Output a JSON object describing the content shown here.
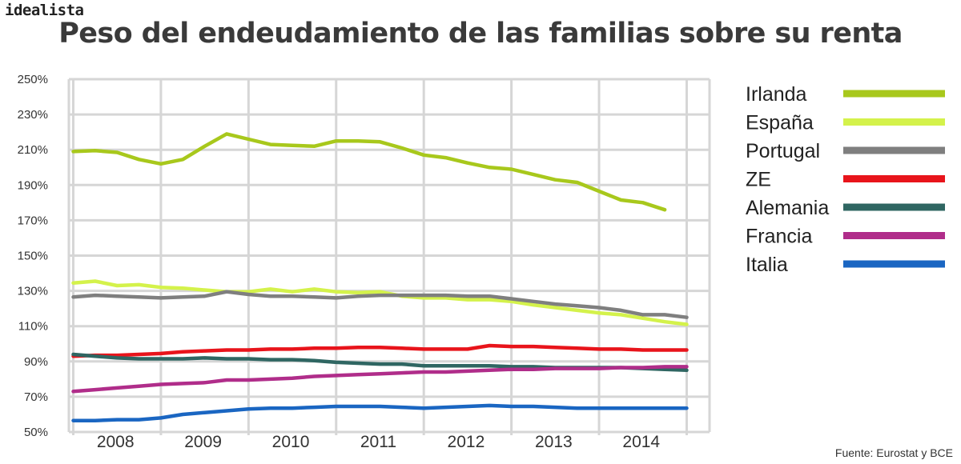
{
  "brand": "idealista",
  "source": "Fuente: Eurostat y BCE",
  "chart_data": {
    "type": "line",
    "title": "Peso del endeudamiento de las familias sobre su renta",
    "xlabel": "",
    "ylabel": "",
    "ylim": [
      50,
      250
    ],
    "xlim": [
      2007.95,
      2014.95
    ],
    "y_ticks": [
      50,
      70,
      90,
      110,
      130,
      150,
      170,
      190,
      210,
      230,
      250
    ],
    "y_tick_suffix": "%",
    "x_tick_labels": [
      "2008",
      "2009",
      "2010",
      "2011",
      "2012",
      "2013",
      "2014"
    ],
    "grid": true,
    "legend_position": "right",
    "series": [
      {
        "name": "Irlanda",
        "color": "#a8c81c",
        "x": [
          2008.0,
          2008.25,
          2008.5,
          2008.75,
          2009.0,
          2009.25,
          2009.5,
          2009.75,
          2010.0,
          2010.25,
          2010.5,
          2010.75,
          2011.0,
          2011.25,
          2011.5,
          2011.75,
          2012.0,
          2012.25,
          2012.5,
          2012.75,
          2013.0,
          2013.25,
          2013.5,
          2013.75,
          2014.0,
          2014.25,
          2014.5,
          2014.75
        ],
        "y": [
          209,
          209.5,
          208.5,
          204.5,
          202,
          204.5,
          212,
          219,
          216,
          213,
          212.5,
          212,
          215,
          215,
          214.5,
          211,
          207,
          205.5,
          202.5,
          200,
          199,
          196,
          193,
          191.5,
          186.5,
          181.5,
          180,
          176
        ]
      },
      {
        "name": "España",
        "color": "#d4f24b",
        "x": [
          2008.0,
          2008.25,
          2008.5,
          2008.75,
          2009.0,
          2009.25,
          2009.5,
          2009.75,
          2010.0,
          2010.25,
          2010.5,
          2010.75,
          2011.0,
          2011.25,
          2011.5,
          2011.75,
          2012.0,
          2012.25,
          2012.5,
          2012.75,
          2013.0,
          2013.25,
          2013.5,
          2013.75,
          2014.0,
          2014.25,
          2014.5,
          2014.75,
          2015.0
        ],
        "y": [
          134.5,
          135.5,
          133,
          133.5,
          132,
          131.5,
          130.5,
          129.5,
          129.5,
          131,
          129.5,
          131,
          129.5,
          129,
          129.5,
          127,
          126,
          126,
          125,
          125,
          124,
          122,
          120.5,
          119,
          117.5,
          116.5,
          114.5,
          112.5,
          111
        ]
      },
      {
        "name": "Portugal",
        "color": "#7f7f7f",
        "x": [
          2008.0,
          2008.25,
          2008.5,
          2008.75,
          2009.0,
          2009.25,
          2009.5,
          2009.75,
          2010.0,
          2010.25,
          2010.5,
          2010.75,
          2011.0,
          2011.25,
          2011.5,
          2011.75,
          2012.0,
          2012.25,
          2012.5,
          2012.75,
          2013.0,
          2013.25,
          2013.5,
          2013.75,
          2014.0,
          2014.25,
          2014.5,
          2014.75,
          2015.0
        ],
        "y": [
          126.5,
          127.5,
          127,
          126.5,
          126,
          126.5,
          127,
          129.5,
          128,
          127,
          127,
          126.5,
          126,
          127,
          127.5,
          127.5,
          127.5,
          127.5,
          127,
          127,
          125.5,
          124,
          122.5,
          121.5,
          120.5,
          119,
          116.5,
          116.5,
          115
        ]
      },
      {
        "name": "ZE",
        "color": "#e8141b",
        "x": [
          2008.0,
          2008.25,
          2008.5,
          2008.75,
          2009.0,
          2009.25,
          2009.5,
          2009.75,
          2010.0,
          2010.25,
          2010.5,
          2010.75,
          2011.0,
          2011.25,
          2011.5,
          2011.75,
          2012.0,
          2012.25,
          2012.5,
          2012.75,
          2013.0,
          2013.25,
          2013.5,
          2013.75,
          2014.0,
          2014.25,
          2014.5,
          2014.75,
          2015.0
        ],
        "y": [
          93,
          93.5,
          93.5,
          94,
          94.5,
          95.5,
          96,
          96.5,
          96.5,
          97,
          97,
          97.5,
          97.5,
          98,
          98,
          97.5,
          97,
          97,
          97,
          99,
          98.5,
          98.5,
          98,
          97.5,
          97,
          97,
          96.5,
          96.5,
          96.5
        ]
      },
      {
        "name": "Alemania",
        "color": "#2f6662",
        "x": [
          2008.0,
          2008.25,
          2008.5,
          2008.75,
          2009.0,
          2009.25,
          2009.5,
          2009.75,
          2010.0,
          2010.25,
          2010.5,
          2010.75,
          2011.0,
          2011.25,
          2011.5,
          2011.75,
          2012.0,
          2012.25,
          2012.5,
          2012.75,
          2013.0,
          2013.25,
          2013.5,
          2013.75,
          2014.0,
          2014.25,
          2014.5,
          2014.75,
          2015.0
        ],
        "y": [
          94,
          93,
          92,
          91.5,
          91.5,
          91.5,
          92,
          91.5,
          91.5,
          91,
          91,
          90.5,
          89.5,
          89,
          88.5,
          88.5,
          87.5,
          87.5,
          87.5,
          87.5,
          87,
          87,
          86.5,
          86.5,
          86.5,
          86.5,
          86,
          85.5,
          85
        ]
      },
      {
        "name": "Francia",
        "color": "#b02d8a",
        "x": [
          2008.0,
          2008.25,
          2008.5,
          2008.75,
          2009.0,
          2009.25,
          2009.5,
          2009.75,
          2010.0,
          2010.25,
          2010.5,
          2010.75,
          2011.0,
          2011.25,
          2011.5,
          2011.75,
          2012.0,
          2012.25,
          2012.5,
          2012.75,
          2013.0,
          2013.25,
          2013.5,
          2013.75,
          2014.0,
          2014.25,
          2014.5,
          2014.75,
          2015.0
        ],
        "y": [
          73,
          74,
          75,
          76,
          77,
          77.5,
          78,
          79.5,
          79.5,
          80,
          80.5,
          81.5,
          82,
          82.5,
          83,
          83.5,
          84,
          84,
          84.5,
          85,
          85.5,
          85.5,
          86,
          86,
          86,
          86.5,
          86.5,
          87,
          87
        ]
      },
      {
        "name": "Italia",
        "color": "#1a66c2",
        "x": [
          2008.0,
          2008.25,
          2008.5,
          2008.75,
          2009.0,
          2009.25,
          2009.5,
          2009.75,
          2010.0,
          2010.25,
          2010.5,
          2010.75,
          2011.0,
          2011.25,
          2011.5,
          2011.75,
          2012.0,
          2012.25,
          2012.5,
          2012.75,
          2013.0,
          2013.25,
          2013.5,
          2013.75,
          2014.0,
          2014.25,
          2014.5,
          2014.75,
          2015.0
        ],
        "y": [
          56.5,
          56.5,
          57,
          57,
          58,
          60,
          61,
          62,
          63,
          63.5,
          63.5,
          64,
          64.5,
          64.5,
          64.5,
          64,
          63.5,
          64,
          64.5,
          65,
          64.5,
          64.5,
          64,
          63.5,
          63.5,
          63.5,
          63.5,
          63.5,
          63.5
        ]
      }
    ]
  }
}
